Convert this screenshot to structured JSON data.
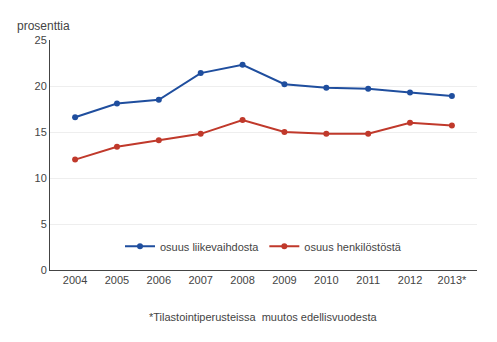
{
  "chart_data": {
    "type": "line",
    "categories": [
      "2004",
      "2005",
      "2006",
      "2007",
      "2008",
      "2009",
      "2010",
      "2011",
      "2012",
      "2013*"
    ],
    "series": [
      {
        "name": "osuus liikevaihdosta",
        "color": "#1f4e9e",
        "marker": "circle",
        "line_style": "solid",
        "values": [
          16.6,
          18.1,
          18.5,
          21.4,
          22.3,
          20.2,
          19.8,
          19.7,
          19.3,
          18.9
        ]
      },
      {
        "name": "osuus henkilöstöstä",
        "color": "#c0392b",
        "marker": "circle",
        "line_style": "solid",
        "values": [
          12.0,
          13.4,
          14.1,
          14.8,
          16.3,
          15.0,
          14.8,
          14.8,
          16.0,
          15.7
        ]
      }
    ],
    "ylabel": "prosenttia",
    "footnote": "*Tilastointiperusteissa  muutos edellisvuodesta",
    "ylim": [
      0,
      25
    ],
    "yticks": [
      0,
      5,
      10,
      15,
      20,
      25
    ],
    "grid": true,
    "legend": "bottom"
  }
}
